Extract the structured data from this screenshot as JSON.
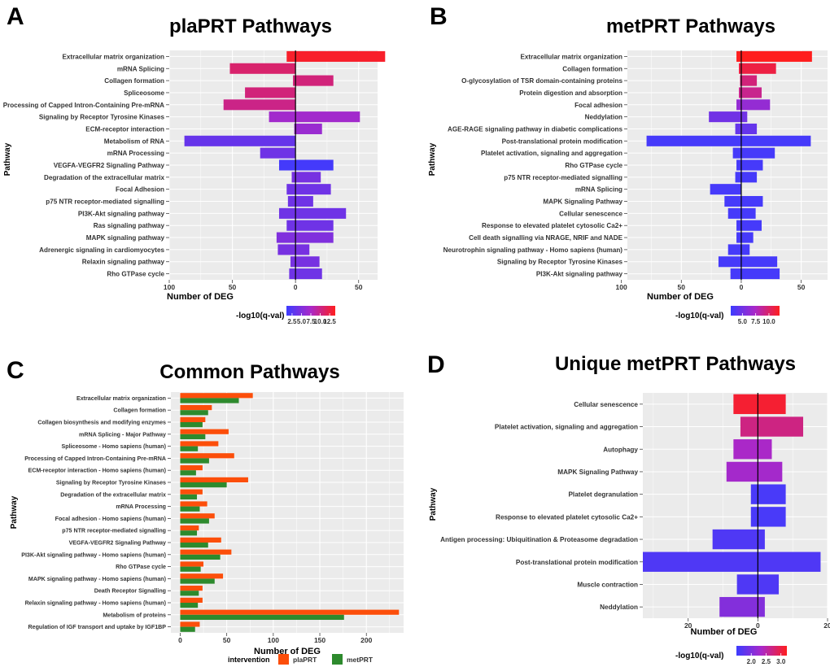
{
  "chart_data": [
    {
      "panel": "A",
      "type": "bar",
      "orientation": "diverging-horizontal",
      "title": "plaPRT Pathways",
      "xlabel": "Number of DEG",
      "ylabel": "Pathway",
      "xlim": [
        -100,
        65
      ],
      "xticks": [
        {
          "value": -100,
          "label": "100"
        },
        {
          "value": -50,
          "label": "50"
        },
        {
          "value": 0,
          "label": "0"
        },
        {
          "value": 50,
          "label": "50"
        }
      ],
      "legend": {
        "title": "-log10(q-val)",
        "ticks": [
          "2.5",
          "5.0",
          "7.5",
          "10.0",
          "12.5"
        ],
        "range": [
          1,
          14
        ],
        "tick_values": [
          2.5,
          5.0,
          7.5,
          10.0,
          12.5
        ]
      },
      "categories": [
        "Extracellular matrix organization",
        "mRNA Splicing",
        "Collagen formation",
        "Spliceosome",
        "Processing of Capped Intron-Containing Pre-mRNA",
        "Signaling by Receptor Tyrosine Kinases",
        "ECM-receptor interaction",
        "Metabolism of RNA",
        "mRNA Processing",
        "VEGFA-VEGFR2 Signaling Pathway",
        "Degradation of the extracellular matrix",
        "Focal Adhesion",
        "p75 NTR receptor-mediated signalling",
        "PI3K-Akt signaling pathway",
        "Ras signaling pathway",
        "MAPK signaling pathway",
        "Adrenergic signaling in cardiomyocytes",
        "Relaxin signaling pathway",
        "Rho GTPase cycle"
      ],
      "neg": [
        -7,
        -52,
        -2,
        -40,
        -57,
        -21,
        -1,
        -88,
        -28,
        -13,
        -3,
        -7,
        -6,
        -13,
        -7,
        -15,
        -14,
        -4,
        -5
      ],
      "pos": [
        71,
        0,
        30,
        0,
        0,
        51,
        21,
        0,
        0,
        30,
        20,
        28,
        14,
        40,
        30,
        30,
        11,
        19,
        21
      ],
      "colorval": [
        13.5,
        11,
        10.5,
        10.5,
        10,
        7,
        6.5,
        3.5,
        4,
        1.5,
        4.5,
        4,
        4,
        4,
        4,
        5,
        4.5,
        4.5,
        4
      ]
    },
    {
      "panel": "B",
      "type": "bar",
      "orientation": "diverging-horizontal",
      "title": "metPRT Pathways",
      "xlabel": "Number of DEG",
      "ylabel": "Pathway",
      "xlim": [
        -95,
        72
      ],
      "xticks": [
        {
          "value": -100,
          "label": "100"
        },
        {
          "value": -50,
          "label": "50"
        },
        {
          "value": 0,
          "label": "0"
        },
        {
          "value": 50,
          "label": "50"
        }
      ],
      "legend": {
        "title": "-log10(q-val)",
        "ticks": [
          "5.0",
          "7.5",
          "10.0"
        ],
        "range": [
          2.8,
          12
        ],
        "tick_values": [
          5.0,
          7.5,
          10.0
        ]
      },
      "categories": [
        "Extracellular matrix organization",
        "Collagen formation",
        "O-glycosylation of TSR domain-containing proteins",
        "Protein digestion and absorption",
        "Focal adhesion",
        "Neddylation",
        "AGE-RAGE signaling pathway in diabetic complications",
        "Post-translational protein modification",
        "Platelet activation, signaling and aggregation",
        "Rho GTPase cycle",
        "p75 NTR receptor-mediated signalling",
        "mRNA Splicing",
        "MAPK Signaling Pathway",
        "Cellular senescence",
        "Response to elevated platelet cytosolic Ca2+",
        "Cell death signalling via NRAGE, NRIF and NADE",
        "Neurotrophin signaling pathway - Homo sapiens (human)",
        "Signaling by Receptor Tyrosine Kinases",
        "PI3K-Akt signaling pathway"
      ],
      "neg": [
        -4,
        -2,
        -1,
        -2,
        -4,
        -27,
        -5,
        -79,
        -7,
        -4,
        -5,
        -26,
        -14,
        -11,
        -4,
        -4,
        -11,
        -19,
        -9
      ],
      "pos": [
        59,
        29,
        13,
        17,
        24,
        5,
        13,
        58,
        28,
        18,
        13,
        0,
        18,
        12,
        17,
        10,
        7,
        30,
        32
      ],
      "colorval": [
        12,
        11,
        9.5,
        9,
        6.5,
        5,
        4.5,
        3.2,
        3.2,
        3.2,
        3.2,
        3.2,
        3.2,
        3.2,
        3.2,
        3.2,
        3.2,
        3.2,
        3.2
      ]
    },
    {
      "panel": "C",
      "type": "bar",
      "orientation": "horizontal-grouped",
      "title": "Common Pathways",
      "xlabel": "Number of DEG",
      "ylabel": "Pathway",
      "xlim": [
        -10,
        240
      ],
      "xticks": [
        {
          "value": 0,
          "label": "0"
        },
        {
          "value": 50,
          "label": "50"
        },
        {
          "value": 100,
          "label": "100"
        },
        {
          "value": 150,
          "label": "150"
        },
        {
          "value": 200,
          "label": "200"
        }
      ],
      "legend": {
        "title": "intervention",
        "entries": [
          "plaPRT",
          "metPRT"
        ]
      },
      "categories": [
        "Extracellular matrix organization",
        "Collagen formation",
        "Collagen biosynthesis and modifying enzymes",
        "mRNA Splicing - Major Pathway",
        "Spliceosome - Homo sapiens (human)",
        "Processing of Capped Intron-Containing Pre-mRNA",
        "ECM-receptor interaction - Homo sapiens (human)",
        "Signaling by Receptor Tyrosine Kinases",
        "Degradation of the extracellular matrix",
        "mRNA Processing",
        "Focal adhesion - Homo sapiens (human)",
        "p75 NTR receptor-mediated signalling",
        "VEGFA-VEGFR2 Signaling Pathway",
        "PI3K-Akt signaling pathway - Homo sapiens (human)",
        "Rho GTPase cycle",
        "MAPK signaling pathway - Homo sapiens (human)",
        "Death Receptor Signalling",
        "Relaxin signaling pathway - Homo sapiens (human)",
        "Metabolism of proteins",
        "Regulation of IGF transport and uptake by IGF1BP"
      ],
      "series": [
        {
          "name": "plaPRT",
          "color": "#fc4e0a",
          "values": [
            78,
            34,
            27,
            52,
            41,
            58,
            24,
            73,
            24,
            29,
            37,
            20,
            44,
            55,
            25,
            46,
            24,
            24,
            235,
            21
          ]
        },
        {
          "name": "metPRT",
          "color": "#2d8a2d",
          "values": [
            63,
            30,
            24,
            27,
            19,
            31,
            17,
            50,
            18,
            21,
            31,
            18,
            30,
            43,
            22,
            37,
            20,
            19,
            176,
            16
          ]
        }
      ]
    },
    {
      "panel": "D",
      "type": "bar",
      "orientation": "diverging-horizontal",
      "title": "Unique metPRT Pathways",
      "xlabel": "Number of DEG",
      "ylabel": "Pathway",
      "xlim": [
        -33,
        20
      ],
      "xticks": [
        {
          "value": -20,
          "label": "20"
        },
        {
          "value": 0,
          "label": "0"
        },
        {
          "value": 20,
          "label": "20"
        }
      ],
      "legend": {
        "title": "-log10(q-val)",
        "ticks": [
          "2.0",
          "2.5",
          "3.0"
        ],
        "range": [
          1.5,
          3.2
        ],
        "tick_values": [
          2.0,
          2.5,
          3.0
        ]
      },
      "categories": [
        "Cellular senescence",
        "Platelet activation, signaling and aggregation",
        "Autophagy",
        "MAPK Signaling Pathway",
        "Platelet degranulation",
        "Response to elevated platelet cytosolic Ca2+",
        "Antigen processing: Ubiquitination & Proteasome degradation",
        "Post-translational protein modification",
        "Muscle contraction",
        "Neddylation"
      ],
      "neg": [
        -7,
        -5,
        -7,
        -9,
        -2,
        -2,
        -13,
        -33,
        -6,
        -11
      ],
      "pos": [
        8,
        13,
        4,
        7,
        8,
        8,
        2,
        18,
        6,
        2
      ],
      "colorval": [
        3.1,
        2.7,
        2.35,
        2.3,
        1.6,
        1.6,
        1.65,
        1.65,
        1.65,
        2.05
      ]
    }
  ],
  "panel_letters": [
    "A",
    "B",
    "C",
    "D"
  ]
}
